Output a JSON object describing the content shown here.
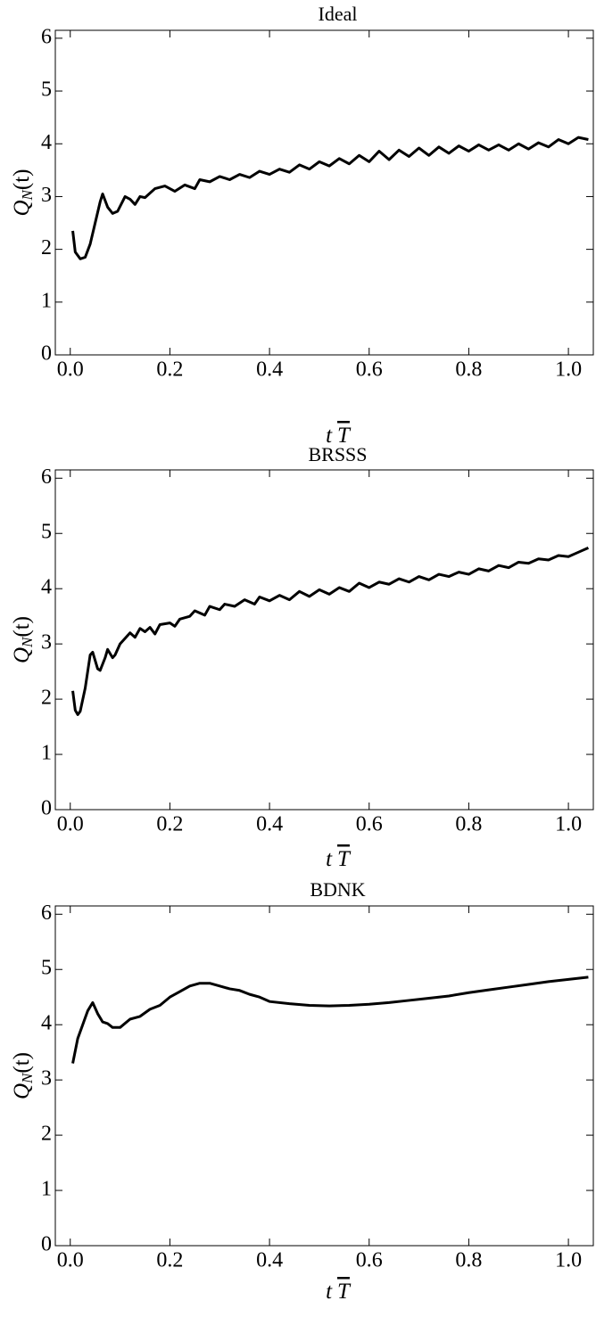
{
  "chart_data": [
    {
      "type": "line",
      "title": "Ideal",
      "xlabel": [
        "t",
        "T"
      ],
      "ylabel": [
        "Q",
        "N",
        "(t)"
      ],
      "xlim": [
        -0.03,
        1.05
      ],
      "ylim": [
        0,
        6.15
      ],
      "xticks": [
        {
          "value": 0,
          "label": "0.0"
        },
        0.2,
        0.4,
        0.6,
        0.8,
        {
          "value": 1,
          "label": "1.0"
        }
      ],
      "yticks": [
        0,
        1,
        2,
        3,
        4,
        5,
        6
      ],
      "color": "#000000",
      "x": [
        0.005,
        0.01,
        0.02,
        0.03,
        0.04,
        0.05,
        0.06,
        0.065,
        0.075,
        0.085,
        0.095,
        0.11,
        0.12,
        0.13,
        0.14,
        0.15,
        0.17,
        0.19,
        0.21,
        0.23,
        0.25,
        0.26,
        0.28,
        0.3,
        0.32,
        0.34,
        0.36,
        0.38,
        0.4,
        0.42,
        0.44,
        0.46,
        0.48,
        0.5,
        0.52,
        0.54,
        0.56,
        0.58,
        0.6,
        0.62,
        0.64,
        0.66,
        0.68,
        0.7,
        0.72,
        0.74,
        0.76,
        0.78,
        0.8,
        0.82,
        0.84,
        0.86,
        0.88,
        0.9,
        0.92,
        0.94,
        0.96,
        0.98,
        1.0,
        1.02,
        1.04
      ],
      "values": [
        2.35,
        1.95,
        1.82,
        1.85,
        2.1,
        2.5,
        2.9,
        3.05,
        2.8,
        2.68,
        2.72,
        3.0,
        2.95,
        2.85,
        3.0,
        2.98,
        3.15,
        3.2,
        3.1,
        3.22,
        3.15,
        3.32,
        3.28,
        3.38,
        3.32,
        3.42,
        3.36,
        3.48,
        3.42,
        3.52,
        3.46,
        3.6,
        3.52,
        3.66,
        3.58,
        3.72,
        3.62,
        3.78,
        3.66,
        3.86,
        3.7,
        3.88,
        3.76,
        3.92,
        3.78,
        3.94,
        3.82,
        3.96,
        3.86,
        3.98,
        3.88,
        3.98,
        3.88,
        4.0,
        3.9,
        4.02,
        3.94,
        4.08,
        4.0,
        4.12,
        4.08
      ]
    },
    {
      "type": "line",
      "title": "BRSSS",
      "xlabel": [
        "t",
        "T"
      ],
      "ylabel": [
        "Q",
        "N",
        "(t)"
      ],
      "xlim": [
        -0.03,
        1.05
      ],
      "ylim": [
        0,
        6.15
      ],
      "xticks": [
        {
          "value": 0,
          "label": "0.0"
        },
        0.2,
        0.4,
        0.6,
        0.8,
        {
          "value": 1,
          "label": "1.0"
        }
      ],
      "yticks": [
        0,
        1,
        2,
        3,
        4,
        5,
        6
      ],
      "color": "#000000",
      "x": [
        0.005,
        0.01,
        0.015,
        0.02,
        0.03,
        0.04,
        0.045,
        0.055,
        0.06,
        0.07,
        0.075,
        0.085,
        0.09,
        0.1,
        0.12,
        0.13,
        0.14,
        0.15,
        0.16,
        0.17,
        0.18,
        0.2,
        0.21,
        0.22,
        0.24,
        0.25,
        0.27,
        0.28,
        0.3,
        0.31,
        0.33,
        0.35,
        0.37,
        0.38,
        0.4,
        0.42,
        0.44,
        0.46,
        0.48,
        0.5,
        0.52,
        0.54,
        0.56,
        0.58,
        0.6,
        0.62,
        0.64,
        0.66,
        0.68,
        0.7,
        0.72,
        0.74,
        0.76,
        0.78,
        0.8,
        0.82,
        0.84,
        0.86,
        0.88,
        0.9,
        0.92,
        0.94,
        0.96,
        0.98,
        1.0,
        1.02,
        1.04
      ],
      "values": [
        2.15,
        1.8,
        1.72,
        1.78,
        2.2,
        2.8,
        2.85,
        2.55,
        2.52,
        2.75,
        2.9,
        2.75,
        2.8,
        3.0,
        3.2,
        3.12,
        3.28,
        3.22,
        3.3,
        3.18,
        3.35,
        3.38,
        3.32,
        3.45,
        3.5,
        3.6,
        3.52,
        3.68,
        3.62,
        3.72,
        3.68,
        3.8,
        3.72,
        3.85,
        3.78,
        3.88,
        3.8,
        3.95,
        3.86,
        3.98,
        3.9,
        4.02,
        3.95,
        4.1,
        4.02,
        4.12,
        4.08,
        4.18,
        4.12,
        4.22,
        4.16,
        4.26,
        4.22,
        4.3,
        4.26,
        4.36,
        4.32,
        4.42,
        4.38,
        4.48,
        4.46,
        4.54,
        4.52,
        4.6,
        4.58,
        4.66,
        4.74
      ]
    },
    {
      "type": "line",
      "title": "BDNK",
      "xlabel": [
        "t",
        "T"
      ],
      "ylabel": [
        "Q",
        "N",
        "(t)"
      ],
      "xlim": [
        -0.03,
        1.05
      ],
      "ylim": [
        0,
        6.15
      ],
      "xticks": [
        {
          "value": 0,
          "label": "0.0"
        },
        0.2,
        0.4,
        0.6,
        0.8,
        {
          "value": 1,
          "label": "1.0"
        }
      ],
      "yticks": [
        0,
        1,
        2,
        3,
        4,
        5,
        6
      ],
      "color": "#000000",
      "x": [
        0.005,
        0.015,
        0.025,
        0.035,
        0.045,
        0.055,
        0.065,
        0.075,
        0.085,
        0.1,
        0.12,
        0.14,
        0.16,
        0.18,
        0.2,
        0.22,
        0.24,
        0.26,
        0.28,
        0.3,
        0.32,
        0.34,
        0.36,
        0.38,
        0.4,
        0.44,
        0.48,
        0.52,
        0.56,
        0.6,
        0.64,
        0.68,
        0.72,
        0.76,
        0.8,
        0.84,
        0.88,
        0.92,
        0.96,
        1.0,
        1.04
      ],
      "values": [
        3.3,
        3.75,
        4.0,
        4.25,
        4.4,
        4.2,
        4.05,
        4.02,
        3.95,
        3.95,
        4.1,
        4.15,
        4.28,
        4.35,
        4.5,
        4.6,
        4.7,
        4.75,
        4.75,
        4.7,
        4.65,
        4.62,
        4.55,
        4.5,
        4.42,
        4.38,
        4.35,
        4.34,
        4.35,
        4.37,
        4.4,
        4.44,
        4.48,
        4.52,
        4.58,
        4.63,
        4.68,
        4.73,
        4.78,
        4.82,
        4.86
      ]
    }
  ]
}
